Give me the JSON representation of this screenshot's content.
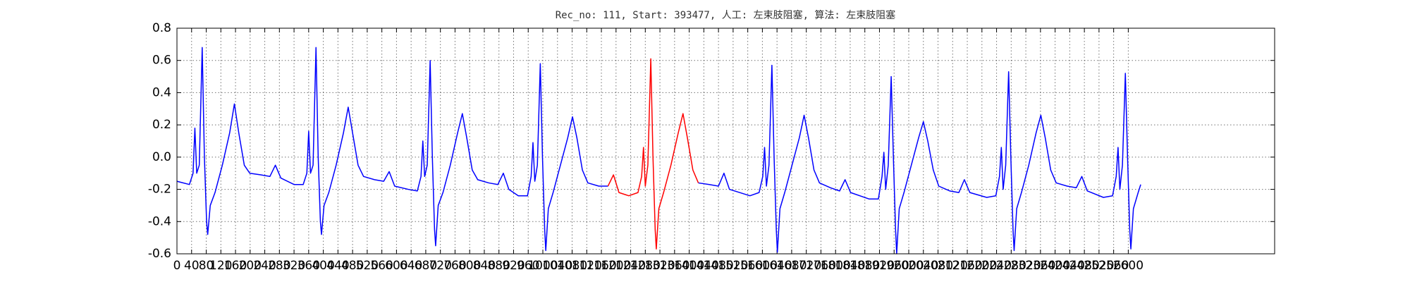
{
  "chart_data": {
    "type": "line",
    "title": "Rec_no: 111, Start: 393477, 人工: 左束肢阻塞, 算法: 左束肢阻塞",
    "xlim": [
      0,
      3000
    ],
    "ylim": [
      -0.6,
      0.8
    ],
    "xticks": [
      0,
      40,
      80,
      120,
      160,
      200,
      240,
      280,
      320,
      360,
      400,
      440,
      480,
      520,
      560,
      600,
      640,
      680,
      720,
      760,
      800,
      840,
      880,
      920,
      960,
      1000,
      1040,
      1080,
      1120,
      1160,
      1200,
      1240,
      1280,
      1320,
      1360,
      1400,
      1440,
      1480,
      1520,
      1560,
      1600,
      1640,
      1680,
      1720,
      1760,
      1800,
      1840,
      1880,
      1920,
      1960,
      2000,
      2040,
      2080,
      2120,
      2160,
      2200,
      2240,
      2280,
      2320,
      2360,
      2400,
      2440,
      2480,
      2520,
      2560,
      2600
    ],
    "yticks": [
      -0.6,
      -0.4,
      -0.2,
      {
        "value": 0,
        "label": "0.0"
      },
      0.2,
      0.4,
      0.6,
      0.8
    ],
    "grid": true,
    "x": [
      0,
      34,
      44,
      49,
      54,
      61,
      69,
      75,
      81,
      84,
      91,
      104,
      124,
      144,
      157,
      169,
      184,
      199,
      229,
      254,
      269,
      284,
      320,
      345,
      355,
      360,
      365,
      372,
      380,
      386,
      392,
      395,
      402,
      415,
      435,
      455,
      468,
      480,
      495,
      510,
      540,
      565,
      580,
      595,
      632,
      657,
      667,
      672,
      677,
      684,
      692,
      698,
      704,
      707,
      714,
      727,
      747,
      767,
      780,
      792,
      807,
      822,
      852,
      877,
      892,
      907,
      933,
      958,
      968,
      973,
      978,
      985,
      993,
      999,
      1005,
      1008,
      1015,
      1028,
      1048,
      1068,
      1081,
      1093,
      1108,
      1123,
      1153,
      1178,
      1193,
      1208,
      1235,
      1260,
      1270,
      1275,
      1280,
      1287,
      1295,
      1301,
      1307,
      1310,
      1317,
      1330,
      1350,
      1370,
      1383,
      1395,
      1410,
      1425,
      1455,
      1480,
      1495,
      1510,
      1566,
      1591,
      1601,
      1606,
      1611,
      1618,
      1626,
      1632,
      1638,
      1641,
      1648,
      1661,
      1681,
      1701,
      1714,
      1726,
      1741,
      1756,
      1786,
      1811,
      1826,
      1841,
      1892,
      1917,
      1927,
      1932,
      1937,
      1944,
      1952,
      1958,
      1964,
      1967,
      1974,
      1987,
      2007,
      2027,
      2040,
      2052,
      2067,
      2082,
      2112,
      2137,
      2152,
      2167,
      2213,
      2238,
      2248,
      2253,
      2258,
      2265,
      2273,
      2279,
      2285,
      2288,
      2295,
      2308,
      2328,
      2348,
      2361,
      2373,
      2388,
      2403,
      2433,
      2458,
      2473,
      2488,
      2532,
      2557,
      2567,
      2572,
      2577,
      2584,
      2592,
      2598,
      2604,
      2607,
      2614,
      2627,
      2634
    ],
    "series": [
      {
        "color": "#0000ff",
        "values": [
          -0.15,
          -0.17,
          -0.1,
          0.18,
          -0.1,
          -0.05,
          0.68,
          0.0,
          -0.4,
          -0.48,
          -0.3,
          -0.22,
          -0.05,
          0.15,
          0.33,
          0.15,
          -0.05,
          -0.1,
          -0.11,
          -0.12,
          -0.05,
          -0.13,
          -0.17,
          -0.17,
          -0.1,
          0.16,
          -0.1,
          -0.05,
          0.68,
          0.0,
          -0.4,
          -0.48,
          -0.3,
          -0.22,
          -0.05,
          0.15,
          0.31,
          0.15,
          -0.05,
          -0.12,
          -0.14,
          -0.15,
          -0.09,
          -0.18,
          -0.2,
          -0.21,
          -0.12,
          0.1,
          -0.12,
          -0.05,
          0.6,
          0.0,
          -0.45,
          -0.55,
          -0.3,
          -0.22,
          -0.05,
          0.15,
          0.27,
          0.12,
          -0.08,
          -0.14,
          -0.16,
          -0.17,
          -0.1,
          -0.2,
          -0.24,
          -0.24,
          -0.12,
          0.09,
          -0.15,
          -0.05,
          0.58,
          0.0,
          -0.45,
          -0.58,
          -0.32,
          -0.22,
          -0.05,
          0.12,
          0.25,
          0.12,
          -0.08,
          -0.16,
          -0.18,
          -0.18,
          null,
          null,
          null,
          null,
          null,
          null,
          null,
          null,
          null,
          null,
          null,
          null,
          null,
          null,
          null,
          null,
          null,
          null,
          null,
          -0.16,
          -0.17,
          -0.18,
          -0.1,
          -0.2,
          -0.24,
          -0.22,
          -0.12,
          0.06,
          -0.18,
          -0.05,
          0.57,
          0.0,
          -0.45,
          -0.59,
          -0.32,
          -0.22,
          -0.05,
          0.12,
          0.26,
          0.12,
          -0.08,
          -0.16,
          -0.19,
          -0.21,
          -0.14,
          -0.22,
          -0.26,
          -0.26,
          -0.12,
          0.03,
          -0.2,
          -0.05,
          0.5,
          0.0,
          -0.45,
          -0.6,
          -0.32,
          -0.22,
          -0.05,
          0.12,
          0.22,
          0.1,
          -0.08,
          -0.18,
          -0.21,
          -0.22,
          -0.14,
          -0.22,
          -0.25,
          -0.24,
          -0.12,
          0.06,
          -0.2,
          -0.05,
          0.53,
          0.0,
          -0.45,
          -0.58,
          -0.32,
          -0.22,
          -0.05,
          0.15,
          0.26,
          0.12,
          -0.08,
          -0.16,
          -0.18,
          -0.19,
          -0.12,
          -0.21,
          -0.25,
          -0.24,
          -0.12,
          0.06,
          -0.2,
          -0.05,
          0.52,
          0.0,
          -0.45,
          -0.57,
          -0.32,
          -0.22,
          -0.17
        ]
      },
      {
        "color": "#ff0000",
        "values": [
          null,
          null,
          null,
          null,
          null,
          null,
          null,
          null,
          null,
          null,
          null,
          null,
          null,
          null,
          null,
          null,
          null,
          null,
          null,
          null,
          null,
          null,
          null,
          null,
          null,
          null,
          null,
          null,
          null,
          null,
          null,
          null,
          null,
          null,
          null,
          null,
          null,
          null,
          null,
          null,
          null,
          null,
          null,
          null,
          null,
          null,
          null,
          null,
          null,
          null,
          null,
          null,
          null,
          null,
          null,
          null,
          null,
          null,
          null,
          null,
          null,
          null,
          null,
          null,
          null,
          null,
          null,
          null,
          null,
          null,
          null,
          null,
          null,
          null,
          null,
          null,
          null,
          null,
          null,
          null,
          null,
          null,
          null,
          null,
          null,
          -0.18,
          -0.11,
          -0.22,
          -0.24,
          -0.22,
          -0.12,
          0.06,
          -0.18,
          -0.05,
          0.61,
          0.0,
          -0.45,
          -0.57,
          -0.32,
          -0.22,
          -0.05,
          0.15,
          0.27,
          0.12,
          -0.08,
          -0.16,
          null,
          null,
          null,
          null,
          null,
          null,
          null,
          null,
          null,
          null,
          null,
          null,
          null,
          null,
          null,
          null,
          null,
          null,
          null,
          null,
          null,
          null,
          null,
          null,
          null,
          null,
          null,
          null,
          null,
          null,
          null,
          null,
          null,
          null,
          null,
          null,
          null,
          null,
          null,
          null,
          null,
          null,
          null,
          null,
          null,
          null,
          null,
          null,
          null,
          null,
          null,
          null,
          null,
          null,
          null,
          null,
          null,
          null,
          null,
          null,
          null,
          null,
          null,
          null,
          null,
          null,
          null,
          null,
          null,
          null,
          null,
          null,
          null,
          null,
          null,
          null,
          null,
          null,
          null,
          null,
          null,
          null,
          null
        ]
      }
    ]
  }
}
